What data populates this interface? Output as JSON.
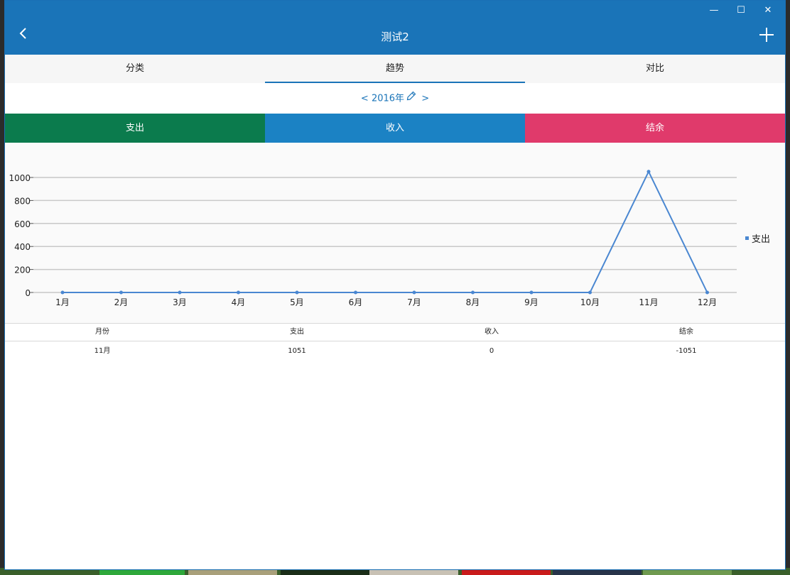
{
  "window": {
    "title": "测试2",
    "controls": {
      "minimize": "—",
      "maximize": "☐",
      "close": "✕"
    }
  },
  "tabs": [
    {
      "label": "分类",
      "active": false
    },
    {
      "label": "趋势",
      "active": true
    },
    {
      "label": "对比",
      "active": false
    }
  ],
  "year_selector": {
    "prev": "<",
    "label": "2016年",
    "next": ">"
  },
  "metrics": [
    {
      "label": "支出",
      "color": "#0b7b4d"
    },
    {
      "label": "收入",
      "color": "#1b82c4"
    },
    {
      "label": "结余",
      "color": "#e03a6b"
    }
  ],
  "chart_data": {
    "type": "line",
    "categories": [
      "1月",
      "2月",
      "3月",
      "4月",
      "5月",
      "6月",
      "7月",
      "8月",
      "9月",
      "10月",
      "11月",
      "12月"
    ],
    "series": [
      {
        "name": "支出",
        "values": [
          0,
          0,
          0,
          0,
          0,
          0,
          0,
          0,
          0,
          0,
          1051,
          0
        ],
        "color": "#4a87d1"
      }
    ],
    "yticks": [
      "0",
      "200",
      "400",
      "600",
      "800",
      "1000"
    ],
    "ylim": [
      0,
      1000
    ],
    "grid": true,
    "legend": "right"
  },
  "table": {
    "headers": [
      "月份",
      "支出",
      "收入",
      "结余"
    ],
    "rows": [
      [
        "11月",
        "1051",
        "0",
        "-1051"
      ]
    ]
  }
}
